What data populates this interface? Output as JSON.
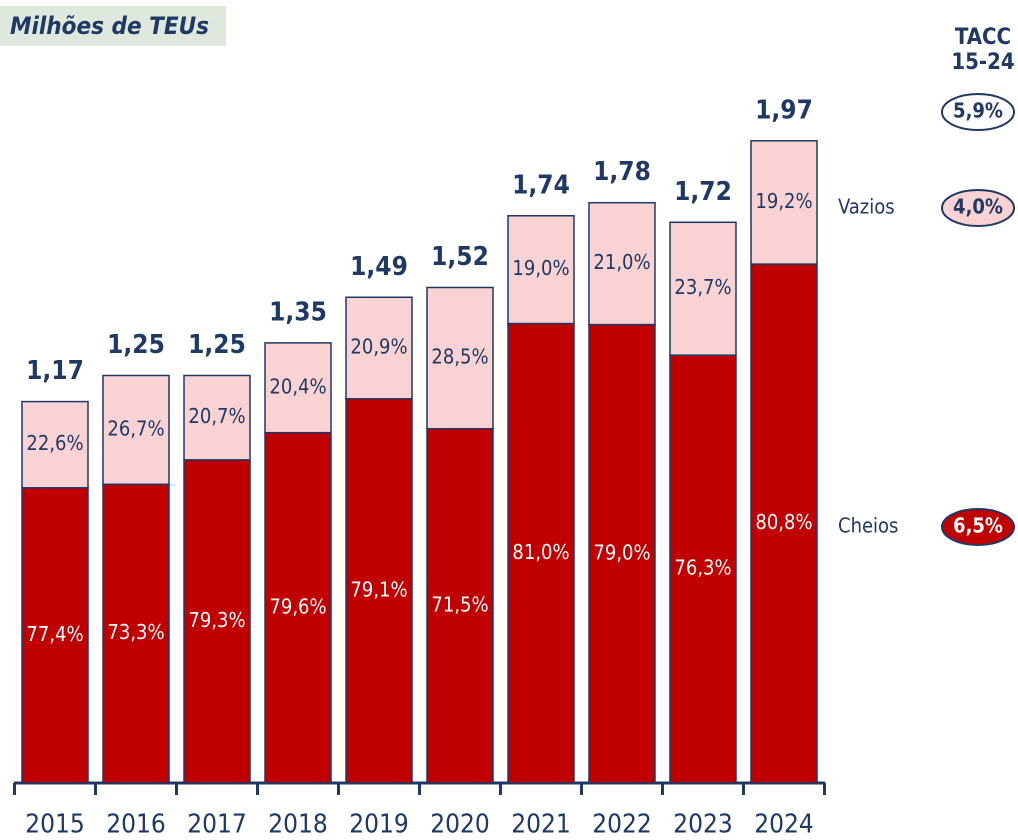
{
  "chart_data": {
    "type": "bar",
    "stacked": true,
    "title": "Milhões de TEUs",
    "cagr_title": [
      "TACC",
      "15-24"
    ],
    "categories": [
      "2015",
      "2016",
      "2017",
      "2018",
      "2019",
      "2020",
      "2021",
      "2022",
      "2023",
      "2024"
    ],
    "totals": {
      "values": [
        1.17,
        1.25,
        1.25,
        1.35,
        1.49,
        1.52,
        1.74,
        1.78,
        1.72,
        1.97
      ],
      "value_labels": [
        "1,17",
        "1,25",
        "1,25",
        "1,35",
        "1,49",
        "1,52",
        "1,74",
        "1,78",
        "1,72",
        "1,97"
      ],
      "cagr": {
        "value": 5.9,
        "label": "5,9%"
      }
    },
    "series": [
      {
        "name": "Cheios",
        "color": "#c00000",
        "label_color": "#ffffff",
        "values": [
          77.4,
          73.3,
          79.3,
          79.6,
          79.1,
          71.5,
          81.0,
          79.0,
          76.3,
          80.8
        ],
        "value_labels": [
          "77,4%",
          "73,3%",
          "79,3%",
          "79,6%",
          "79,1%",
          "71,5%",
          "81,0%",
          "79,0%",
          "76,3%",
          "80,8%"
        ],
        "cagr": {
          "value": 6.5,
          "label": "6,5%"
        }
      },
      {
        "name": "Vazios",
        "color": "#f9d3d3",
        "label_color": "#1f3864",
        "values": [
          22.6,
          26.7,
          20.7,
          20.4,
          20.9,
          28.5,
          19.0,
          21.0,
          23.7,
          19.2
        ],
        "value_labels": [
          "22,6%",
          "26,7%",
          "20,7%",
          "20,4%",
          "20,9%",
          "28,5%",
          "19,0%",
          "21,0%",
          "23,7%",
          "19,2%"
        ],
        "cagr": {
          "value": 4.0,
          "label": "4,0%"
        }
      }
    ]
  }
}
